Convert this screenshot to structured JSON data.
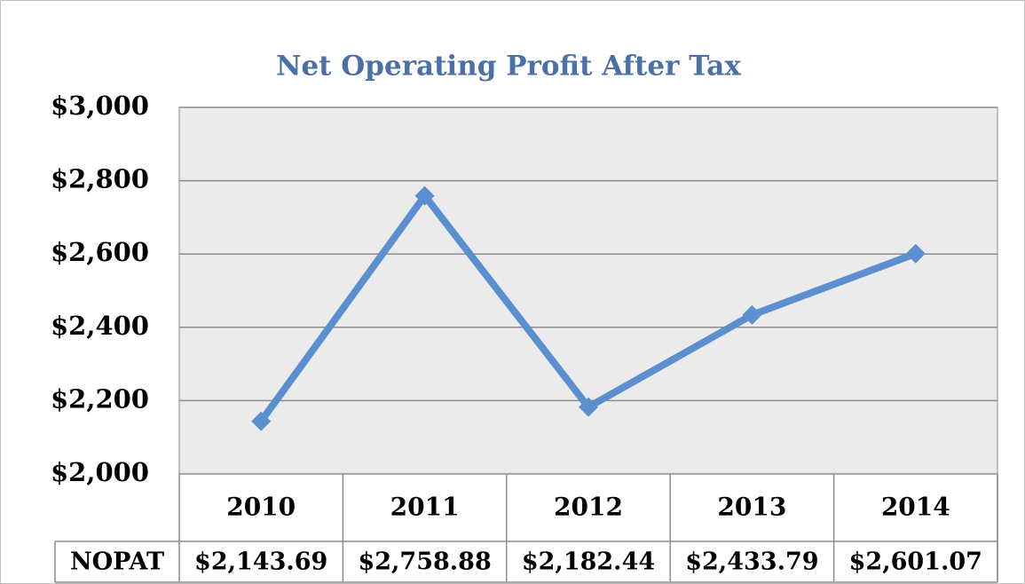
{
  "chart_data": {
    "type": "line",
    "title": "Net Operating Profit After Tax",
    "categories": [
      "2010",
      "2011",
      "2012",
      "2013",
      "2014"
    ],
    "series": [
      {
        "name": "NOPAT",
        "color": "#5b8fd0",
        "values": [
          2143.69,
          2758.88,
          2182.44,
          2433.79,
          2601.07
        ],
        "value_labels": [
          "$2,143.69",
          "$2,758.88",
          "$2,182.44",
          "$2,433.79",
          "$2,601.07"
        ]
      }
    ],
    "ylim": [
      2000,
      3000
    ],
    "yticks": [
      {
        "value": 2000,
        "label": "$2,000"
      },
      {
        "value": 2200,
        "label": "$2,200"
      },
      {
        "value": 2400,
        "label": "$2,400"
      },
      {
        "value": 2600,
        "label": "$2,600"
      },
      {
        "value": 2800,
        "label": "$2,800"
      },
      {
        "value": 3000,
        "label": "$3,000"
      }
    ],
    "grid": true
  }
}
